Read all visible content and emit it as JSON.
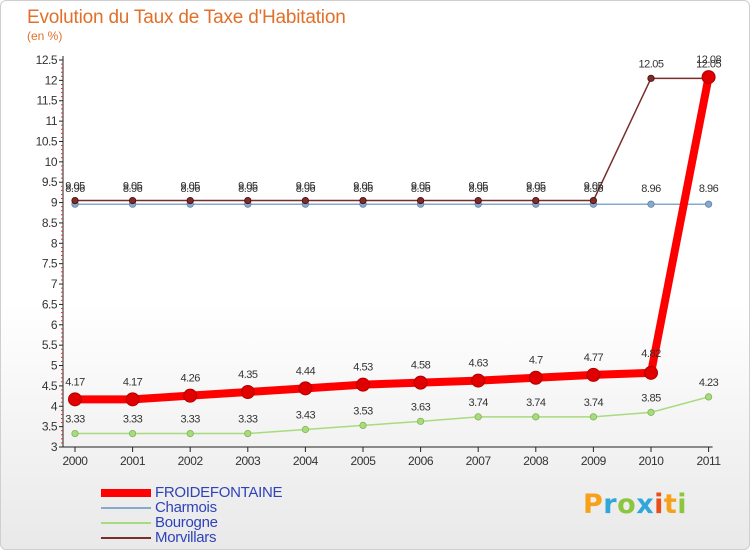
{
  "title": "Evolution du Taux de Taxe d'Habitation",
  "unit": "(en %)",
  "logo": {
    "text": "Proxiti",
    "colors": [
      "#f7a11a",
      "#2fa7d9",
      "#8cc63f",
      "#2fa7d9",
      "#e94e1b",
      "#f7a11a",
      "#8cc63f"
    ]
  },
  "chart_data": {
    "type": "line",
    "x": [
      "2000",
      "2001",
      "2002",
      "2003",
      "2004",
      "2005",
      "2006",
      "2007",
      "2008",
      "2009",
      "2010",
      "2011"
    ],
    "ylim": [
      3,
      12.5
    ],
    "yticks": [
      "3",
      "3.5",
      "4",
      "4.5",
      "5",
      "5.5",
      "6",
      "6.5",
      "7",
      "7.5",
      "8",
      "8.5",
      "9",
      "9.5",
      "10",
      "10.5",
      "11",
      "11.5",
      "12",
      "12.5"
    ],
    "grid": false,
    "legend_position": "bottom-left",
    "series": [
      {
        "name": "FROIDEFONTAINE",
        "color": "#ff0000",
        "width": 8,
        "values": [
          4.17,
          4.17,
          4.26,
          4.35,
          4.44,
          4.53,
          4.58,
          4.63,
          4.7,
          4.77,
          4.82,
          12.08
        ],
        "labels": [
          "4.17",
          "4.17",
          "4.26",
          "4.35",
          "4.44",
          "4.53",
          "4.58",
          "4.63",
          "4.7",
          "4.77",
          "4.82",
          "12.08"
        ]
      },
      {
        "name": "Charmois",
        "color": "#87a9cc",
        "width": 1.5,
        "values": [
          8.96,
          8.96,
          8.96,
          8.96,
          8.96,
          8.96,
          8.96,
          8.96,
          8.96,
          8.96,
          8.96,
          8.96
        ],
        "labels": [
          "8.96",
          "8.96",
          "8.96",
          "8.96",
          "8.96",
          "8.96",
          "8.96",
          "8.96",
          "8.96",
          "8.96",
          "8.96",
          "8.96"
        ]
      },
      {
        "name": "Bourogne",
        "color": "#a8db7e",
        "width": 1.5,
        "values": [
          3.33,
          3.33,
          3.33,
          3.33,
          3.43,
          3.53,
          3.63,
          3.74,
          3.74,
          3.74,
          3.85,
          4.23
        ],
        "labels": [
          "3.33",
          "3.33",
          "3.33",
          "3.33",
          "3.43",
          "3.53",
          "3.63",
          "3.74",
          "3.74",
          "3.74",
          "3.85",
          "4.23"
        ]
      },
      {
        "name": "Morvillars",
        "color": "#7a2d2d",
        "width": 1.5,
        "values": [
          9.05,
          9.05,
          9.05,
          9.05,
          9.05,
          9.05,
          9.05,
          9.05,
          9.05,
          9.05,
          12.05,
          12.05
        ],
        "labels": [
          "9.05",
          "9.05",
          "9.05",
          "9.05",
          "9.05",
          "9.05",
          "9.05",
          "9.05",
          "9.05",
          "9.05",
          "12.05",
          "12.05"
        ]
      }
    ]
  }
}
